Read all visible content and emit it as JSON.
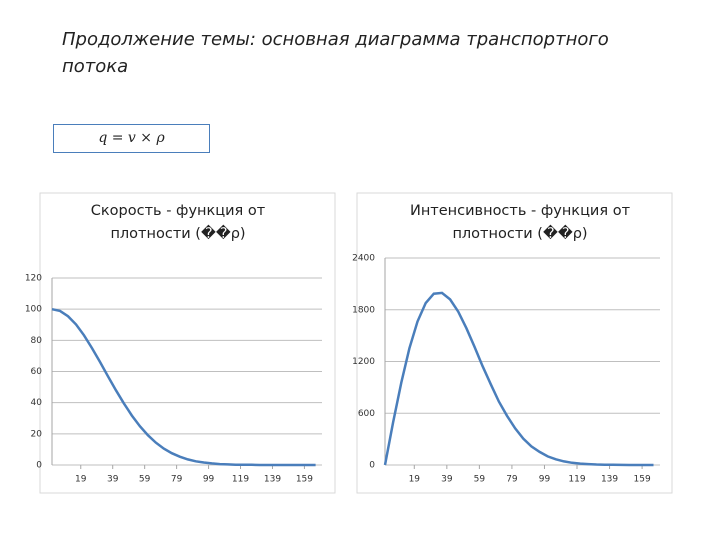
{
  "title": "Продолжение темы: основная диаграмма транспортного потока",
  "formula": "q = v × ρ",
  "chart_data": [
    {
      "type": "line",
      "title": "Скорость - функция от плотности (��ρ)",
      "x": [
        1,
        6,
        11,
        16,
        21,
        26,
        31,
        36,
        41,
        46,
        51,
        56,
        61,
        66,
        71,
        76,
        81,
        86,
        91,
        96,
        101,
        106,
        111,
        116,
        121,
        126,
        131,
        136,
        141,
        146,
        151,
        156,
        161,
        166
      ],
      "series": [
        {
          "color": "#4a7ebb",
          "values": [
            100,
            98.9,
            95.5,
            90.2,
            83.2,
            75.1,
            66.2,
            57.0,
            48.0,
            39.5,
            31.7,
            24.9,
            19.1,
            14.4,
            10.5,
            7.6,
            5.3,
            3.6,
            2.4,
            1.6,
            1.0,
            0.6,
            0.4,
            0.2,
            0.1,
            0.1,
            0,
            0,
            0,
            0,
            0,
            0,
            0,
            0
          ]
        }
      ],
      "xlim": [
        1,
        170
      ],
      "xticks": [
        19,
        39,
        59,
        79,
        99,
        119,
        139,
        159
      ],
      "ylim": [
        0,
        120
      ],
      "yticks": [
        0,
        20,
        40,
        60,
        80,
        100,
        120
      ],
      "grid": true
    },
    {
      "type": "line",
      "title": "Интенсивность - функция от плотности (��ρ)",
      "x": [
        1,
        6,
        11,
        16,
        21,
        26,
        31,
        36,
        41,
        46,
        51,
        56,
        61,
        66,
        71,
        76,
        81,
        86,
        91,
        96,
        101,
        106,
        111,
        116,
        121,
        126,
        131,
        136,
        141,
        146,
        151,
        156,
        161,
        166
      ],
      "series": [
        {
          "color": "#4a7ebb",
          "values": [
            0,
            494,
            955,
            1353,
            1664,
            1878,
            1986,
            1995,
            1920,
            1778,
            1586,
            1370,
            1146,
            936,
            735,
            570,
            424,
            306,
            216,
            152,
            100,
            66,
            42,
            26,
            16,
            10,
            6,
            3,
            2,
            1,
            0,
            0,
            0,
            0
          ]
        }
      ],
      "xlim": [
        1,
        170
      ],
      "xticks": [
        19,
        39,
        59,
        79,
        99,
        119,
        139,
        159
      ],
      "ylim": [
        0,
        2400
      ],
      "yticks": [
        0,
        600,
        1200,
        1800,
        2400
      ],
      "grid": true
    }
  ]
}
